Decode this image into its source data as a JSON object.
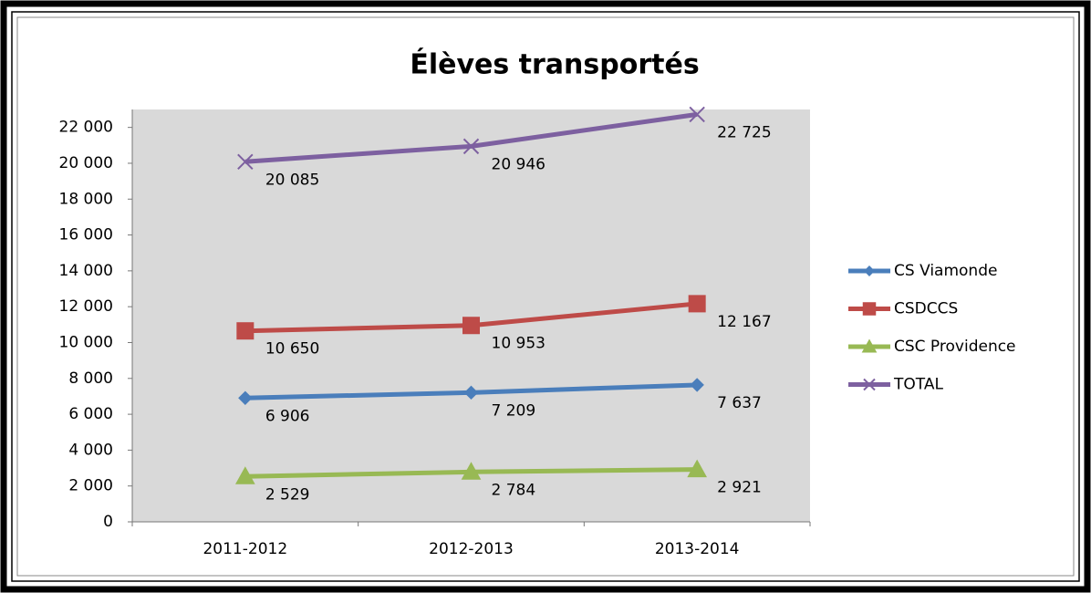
{
  "chart_data": {
    "type": "line",
    "title": "Élèves transportés",
    "categories": [
      "2011-2012",
      "2012-2013",
      "2013-2014"
    ],
    "series": [
      {
        "name": "CS Viamonde",
        "color": "#4a7ebb",
        "label_color": "#000000",
        "marker": "diamond",
        "values": [
          6906,
          7209,
          7637
        ],
        "value_labels": [
          "6 906",
          "7 209",
          "7 637"
        ]
      },
      {
        "name": "CSDCCS",
        "color": "#be4b48",
        "label_color": "#be4b48",
        "marker": "square",
        "values": [
          10650,
          10953,
          12167
        ],
        "value_labels": [
          "10 650",
          "10 953",
          "12 167"
        ]
      },
      {
        "name": "CSC Providence",
        "color": "#98b954",
        "label_color": "#98b954",
        "marker": "triangle",
        "values": [
          2529,
          2784,
          2921
        ],
        "value_labels": [
          "2 529",
          "2 784",
          "2 921"
        ]
      },
      {
        "name": "TOTAL",
        "color": "#7d60a0",
        "label_color": "#000000",
        "marker": "x",
        "values": [
          20085,
          20946,
          22725
        ],
        "value_labels": [
          "20 085",
          "20 946",
          "22 725"
        ]
      }
    ],
    "ylim": [
      0,
      23000
    ],
    "yticks": [
      0,
      {
        "value": 2000,
        "label": "2 000"
      },
      {
        "value": 4000,
        "label": "4 000"
      },
      {
        "value": 6000,
        "label": "6 000"
      },
      {
        "value": 8000,
        "label": "8 000"
      },
      {
        "value": 10000,
        "label": "10 000"
      },
      {
        "value": 12000,
        "label": "12 000"
      },
      {
        "value": 14000,
        "label": "14 000"
      },
      {
        "value": 16000,
        "label": "16 000"
      },
      {
        "value": 18000,
        "label": "18 000"
      },
      {
        "value": 20000,
        "label": "20 000"
      },
      {
        "value": 22000,
        "label": "22 000"
      }
    ],
    "plot_background": "#d9d9d9",
    "legend": "right"
  }
}
